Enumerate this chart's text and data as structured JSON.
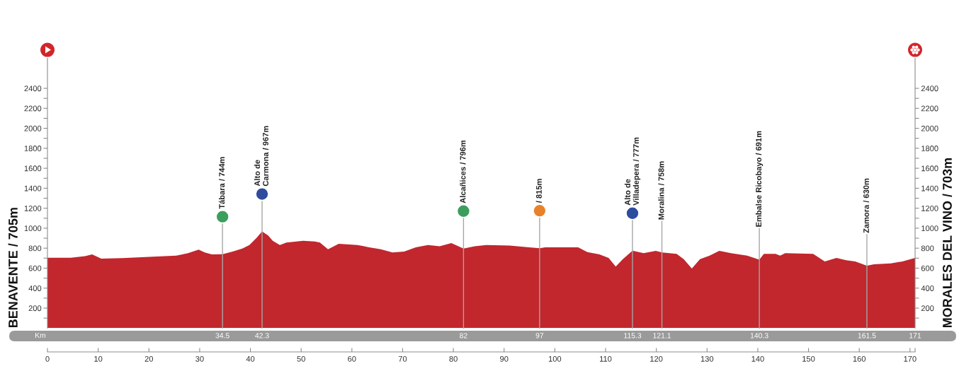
{
  "chart_data": {
    "type": "area",
    "ylabel": "BENAVENTE / 705m",
    "y2label": "MORALES DEL VINO / 703m",
    "x2label": "Km",
    "color": "#c1272d",
    "x": [
      0,
      4.6,
      7.4,
      8.8,
      10.6,
      14.8,
      20.8,
      25.4,
      27.7,
      29.8,
      31.0,
      32.4,
      34.5,
      36.5,
      38.4,
      39.8,
      41.2,
      42.3,
      43.5,
      44.4,
      45.8,
      47.1,
      50.4,
      52.7,
      53.7,
      55.3,
      57.4,
      61.1,
      63.4,
      65.7,
      68.0,
      70.3,
      72.6,
      75.0,
      77.3,
      79.6,
      82.0,
      84.2,
      86.5,
      91.1,
      94.9,
      97.0,
      98.1,
      104.6,
      106.4,
      108.8,
      110.6,
      112.0,
      113.4,
      115.3,
      117.5,
      119.9,
      121.1,
      124.0,
      125.4,
      127.0,
      128.6,
      130.5,
      132.4,
      134.7,
      137.9,
      140.3,
      141.2,
      143.5,
      144.4,
      145.4,
      150.9,
      153.2,
      155.5,
      157.4,
      159.2,
      161.5,
      162.9,
      166.2,
      168.5,
      171
    ],
    "values": [
      705,
      705,
      720,
      738,
      695,
      700,
      714,
      726,
      750,
      785,
      757,
      738,
      740,
      766,
      797,
      832,
      903,
      967,
      927,
      874,
      832,
      856,
      874,
      867,
      856,
      789,
      844,
      832,
      809,
      789,
      757,
      766,
      809,
      832,
      820,
      851,
      796,
      820,
      832,
      827,
      809,
      800,
      809,
      809,
      761,
      738,
      702,
      615,
      690,
      775,
      750,
      773,
      758,
      743,
      690,
      596,
      690,
      726,
      773,
      750,
      726,
      685,
      743,
      743,
      726,
      750,
      743,
      667,
      702,
      679,
      667,
      625,
      639,
      648,
      667,
      703
    ],
    "xlim": [
      0,
      171
    ],
    "xticks": [
      0,
      10,
      20,
      30,
      40,
      50,
      60,
      70,
      80,
      90,
      100,
      110,
      120,
      130,
      140,
      150,
      160,
      170,
      {
        "value": 171,
        "label": null
      }
    ],
    "x2lim": [
      0,
      171
    ],
    "x2ticks": [
      34.5,
      42.3,
      82,
      97,
      115.3,
      121.1,
      140.3,
      161.5,
      171
    ],
    "ylim": [
      0,
      2700
    ],
    "yticks": [
      {
        "value": 100,
        "label": null
      },
      200,
      {
        "value": 300,
        "label": null
      },
      400,
      {
        "value": 500,
        "label": null
      },
      600,
      {
        "value": 700,
        "label": null
      },
      800,
      {
        "value": 900,
        "label": null
      },
      1000,
      {
        "value": 1100,
        "label": null
      },
      1200,
      {
        "value": 1300,
        "label": null
      },
      1400,
      {
        "value": 1500,
        "label": null
      },
      1600,
      {
        "value": 1700,
        "label": null
      },
      1800,
      {
        "value": 1900,
        "label": null
      },
      2000,
      {
        "value": 2100,
        "label": null
      },
      2200,
      {
        "value": 2300,
        "label": null
      },
      2400
    ],
    "y2lim": [
      0,
      2700
    ],
    "y2ticks": [
      {
        "value": 100,
        "label": null
      },
      200,
      {
        "value": 300,
        "label": null
      },
      400,
      {
        "value": 500,
        "label": null
      },
      600,
      {
        "value": 700,
        "label": null
      },
      800,
      {
        "value": 900,
        "label": null
      },
      1000,
      {
        "value": 1100,
        "label": null
      },
      1200,
      {
        "value": 1300,
        "label": null
      },
      1400,
      {
        "value": 1500,
        "label": null
      },
      1600,
      {
        "value": 1700,
        "label": null
      },
      1800,
      {
        "value": 1900,
        "label": null
      },
      2000,
      {
        "value": 2100,
        "label": null
      },
      2200,
      {
        "value": 2300,
        "label": null
      },
      2400
    ],
    "ref_lines": [
      {
        "axis": "x",
        "value": 34.5,
        "label": "Tábara / 744m",
        "color": "#a6a6a6"
      },
      {
        "axis": "x",
        "value": 42.3,
        "label": "Alto de\nCarmona / 967m",
        "color": "#a6a6a6"
      },
      {
        "axis": "x",
        "value": 82,
        "label": "Alcañices / 796m",
        "color": "#a6a6a6"
      },
      {
        "axis": "x",
        "value": 97,
        "label": "/ 815m",
        "color": "#a6a6a6"
      },
      {
        "axis": "x",
        "value": 115.3,
        "label": "Alto de\nVilladepera / 777m",
        "color": "#a6a6a6"
      },
      {
        "axis": "x",
        "value": 121.1,
        "label": "Moralina / 758m",
        "color": "#a6a6a6"
      },
      {
        "axis": "x",
        "value": 140.3,
        "label": "Embalse Ricobayo / 691m",
        "color": "#a6a6a6"
      },
      {
        "axis": "x",
        "value": 161.5,
        "label": "Zamora / 630m",
        "color": "#a6a6a6"
      }
    ]
  }
}
